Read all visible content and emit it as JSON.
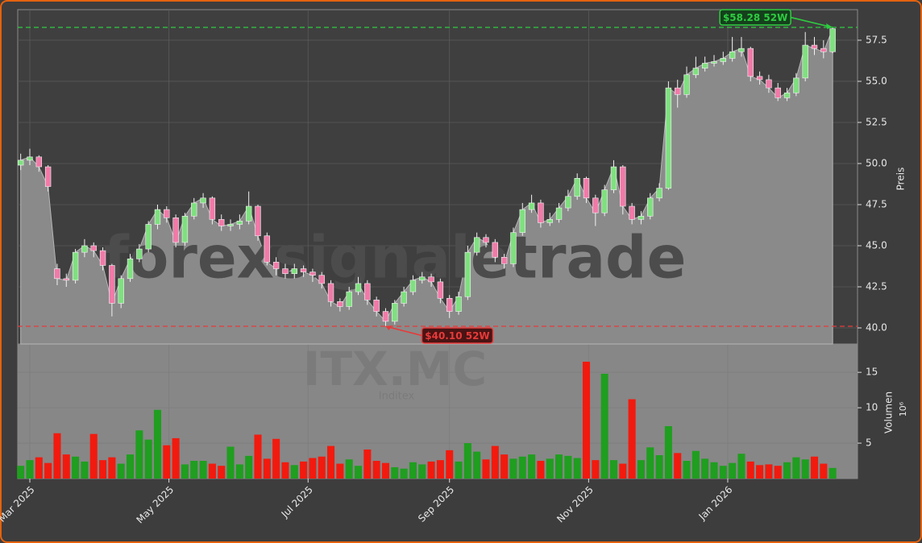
{
  "chart_data": {
    "type": "candlestick",
    "watermark": "forexsignaletrade",
    "symbol": "ITX.MC",
    "company": "Inditex",
    "y_label": "Preis",
    "y2_label": "Volumen",
    "y2_unit": "10⁶",
    "up_color": "#1f9e1f",
    "down_color": "#f21a0e",
    "x": [
      24,
      28,
      32,
      36,
      40,
      44,
      48,
      52,
      56,
      60,
      64,
      68,
      72,
      76,
      80,
      84,
      88,
      92,
      96,
      100,
      104,
      108,
      112,
      116,
      120,
      124,
      128,
      132,
      136,
      140,
      144,
      148,
      152,
      156,
      160,
      164,
      168,
      172,
      176,
      180,
      184,
      188,
      192,
      196,
      200,
      204,
      208,
      212,
      216,
      220,
      224,
      228,
      232,
      236,
      240,
      244,
      248,
      252,
      256,
      260,
      264,
      268,
      272,
      276,
      280,
      284,
      288,
      292,
      296,
      300,
      304,
      308,
      312,
      316,
      320,
      324,
      328,
      332,
      336,
      340,
      344,
      348,
      352,
      356,
      360,
      364,
      368,
      372,
      376,
      380
    ],
    "open": [
      49.9,
      50.2,
      50.4,
      49.8,
      43.6,
      43.0,
      42.9,
      44.6,
      45.0,
      44.7,
      43.8,
      41.5,
      43.0,
      44.2,
      44.8,
      46.3,
      47.2,
      46.7,
      45.2,
      46.8,
      47.6,
      47.9,
      46.6,
      46.2,
      46.3,
      46.5,
      47.4,
      45.6,
      44.0,
      43.6,
      43.3,
      43.6,
      43.4,
      43.2,
      42.7,
      41.6,
      41.3,
      42.2,
      42.7,
      41.7,
      41.0,
      40.4,
      41.5,
      42.2,
      42.9,
      43.1,
      42.8,
      41.8,
      41.0,
      41.9,
      44.6,
      45.5,
      45.2,
      44.3,
      43.9,
      45.8,
      47.2,
      47.6,
      46.4,
      46.6,
      47.3,
      48.0,
      49.1,
      47.9,
      47.0,
      48.4,
      49.8,
      47.4,
      46.6,
      46.8,
      47.9,
      48.5,
      54.6,
      54.2,
      55.4,
      55.8,
      56.1,
      56.2,
      56.4,
      56.8,
      57.0,
      55.3,
      55.1,
      54.6,
      54.0,
      54.3,
      55.2,
      57.2,
      57.0,
      56.8
    ],
    "high": [
      50.6,
      50.9,
      50.5,
      49.9,
      43.9,
      43.3,
      44.8,
      45.4,
      45.2,
      44.9,
      43.9,
      43.2,
      44.5,
      45.1,
      46.5,
      47.5,
      47.4,
      46.9,
      47.0,
      47.9,
      48.2,
      48.0,
      46.9,
      46.6,
      46.9,
      48.3,
      47.5,
      45.8,
      44.3,
      43.9,
      43.9,
      43.8,
      43.6,
      43.4,
      42.9,
      41.8,
      42.5,
      43.1,
      42.9,
      41.9,
      41.2,
      41.7,
      42.5,
      43.2,
      43.4,
      43.3,
      43.0,
      42.0,
      42.2,
      45.0,
      45.8,
      45.7,
      45.4,
      44.5,
      46.1,
      47.6,
      48.1,
      47.8,
      47.0,
      47.6,
      48.4,
      49.4,
      49.2,
      48.1,
      48.7,
      50.2,
      49.9,
      47.6,
      47.1,
      48.2,
      48.8,
      55.0,
      55.1,
      55.9,
      56.5,
      56.5,
      56.6,
      56.8,
      57.7,
      57.7,
      57.1,
      55.6,
      55.4,
      54.9,
      54.6,
      55.5,
      58.0,
      57.7,
      57.5,
      58.28
    ],
    "low": [
      49.6,
      49.9,
      49.5,
      48.3,
      42.6,
      42.5,
      42.7,
      44.3,
      44.3,
      43.5,
      40.7,
      41.2,
      42.8,
      44.0,
      44.6,
      46.0,
      46.4,
      44.9,
      45.0,
      46.6,
      47.3,
      46.3,
      45.9,
      45.9,
      46.0,
      46.3,
      45.3,
      43.8,
      43.2,
      43.0,
      43.0,
      43.1,
      42.8,
      42.4,
      41.3,
      41.0,
      41.1,
      42.0,
      41.4,
      40.7,
      40.1,
      40.2,
      41.3,
      42.0,
      42.7,
      42.5,
      41.5,
      40.6,
      40.8,
      41.7,
      44.4,
      44.9,
      44.0,
      43.6,
      43.7,
      45.6,
      47.0,
      46.1,
      46.2,
      46.4,
      47.1,
      47.8,
      47.6,
      46.2,
      46.8,
      48.2,
      46.9,
      46.3,
      46.3,
      46.6,
      47.7,
      48.4,
      53.4,
      54.0,
      55.2,
      55.6,
      55.9,
      56.0,
      56.2,
      56.5,
      55.0,
      54.8,
      54.3,
      53.8,
      53.8,
      54.1,
      55.0,
      56.6,
      56.4,
      56.7
    ],
    "close": [
      50.2,
      50.4,
      49.8,
      48.6,
      43.0,
      42.9,
      44.6,
      45.0,
      44.7,
      43.8,
      41.5,
      43.0,
      44.2,
      44.8,
      46.3,
      47.2,
      46.7,
      45.2,
      46.8,
      47.6,
      47.9,
      46.6,
      46.2,
      46.3,
      46.5,
      47.4,
      45.6,
      44.0,
      43.6,
      43.3,
      43.6,
      43.4,
      43.2,
      42.7,
      41.6,
      41.3,
      42.2,
      42.7,
      41.7,
      41.0,
      40.4,
      41.5,
      42.2,
      42.9,
      43.1,
      42.8,
      41.8,
      41.0,
      41.9,
      44.6,
      45.5,
      45.2,
      44.3,
      43.9,
      45.8,
      47.2,
      47.6,
      46.4,
      46.6,
      47.3,
      48.0,
      49.1,
      47.9,
      47.0,
      48.4,
      49.8,
      47.4,
      46.6,
      46.8,
      47.9,
      48.5,
      54.6,
      54.2,
      55.4,
      55.8,
      56.1,
      56.2,
      56.4,
      56.8,
      57.0,
      55.3,
      55.1,
      54.6,
      54.0,
      54.3,
      55.2,
      57.2,
      57.0,
      56.8,
      58.2
    ],
    "volume": [
      1.8,
      2.6,
      3.0,
      2.2,
      6.4,
      3.4,
      3.1,
      2.4,
      6.3,
      2.6,
      3.0,
      2.1,
      3.4,
      6.8,
      5.5,
      9.7,
      4.7,
      5.7,
      2.0,
      2.5,
      2.5,
      2.1,
      1.8,
      4.5,
      2.0,
      3.2,
      6.2,
      2.8,
      5.6,
      2.3,
      1.9,
      2.4,
      2.9,
      3.1,
      4.6,
      2.1,
      2.7,
      1.8,
      4.1,
      2.5,
      2.2,
      1.6,
      1.4,
      2.3,
      2.0,
      2.4,
      2.6,
      4.0,
      2.4,
      5.0,
      3.8,
      2.7,
      4.6,
      3.4,
      2.8,
      3.1,
      3.4,
      2.5,
      2.8,
      3.4,
      3.2,
      2.9,
      16.5,
      2.6,
      14.8,
      2.6,
      2.1,
      11.2,
      2.6,
      4.4,
      3.3,
      7.4,
      3.6,
      2.5,
      3.9,
      2.8,
      2.3,
      1.8,
      2.2,
      3.5,
      2.4,
      1.9,
      2.0,
      1.8,
      2.3,
      3.0,
      2.7,
      3.1,
      2.1,
      1.5
    ],
    "xlim": [
      22.7,
      390.9
    ],
    "xticks": [
      {
        "value": 28,
        "label": "Mar 2025"
      },
      {
        "value": 89,
        "label": "May 2025"
      },
      {
        "value": 150,
        "label": "Jul 2025"
      },
      {
        "value": 212,
        "label": "Sep 2025"
      },
      {
        "value": 273,
        "label": "Nov 2025"
      },
      {
        "value": 334,
        "label": "Jan 2026"
      }
    ],
    "ylim": [
      39.02,
      59.36
    ],
    "yticks": [
      {
        "value": 40,
        "label": "40.0"
      },
      42.5,
      {
        "value": 45,
        "label": "45.0"
      },
      47.5,
      {
        "value": 50,
        "label": "50.0"
      },
      52.5,
      {
        "value": 55,
        "label": "55.0"
      },
      57.5
    ],
    "y2lim": [
      0,
      19
    ],
    "y2ticks": [
      5,
      10,
      15
    ],
    "grid": true,
    "annotations": [
      {
        "text": "$58.28 52W",
        "value": 58.28,
        "x": 380,
        "color": "#2ecc40"
      },
      {
        "text": "$40.10 52W",
        "value": 40.1,
        "x": 184,
        "color": "#e83a3a"
      }
    ]
  }
}
